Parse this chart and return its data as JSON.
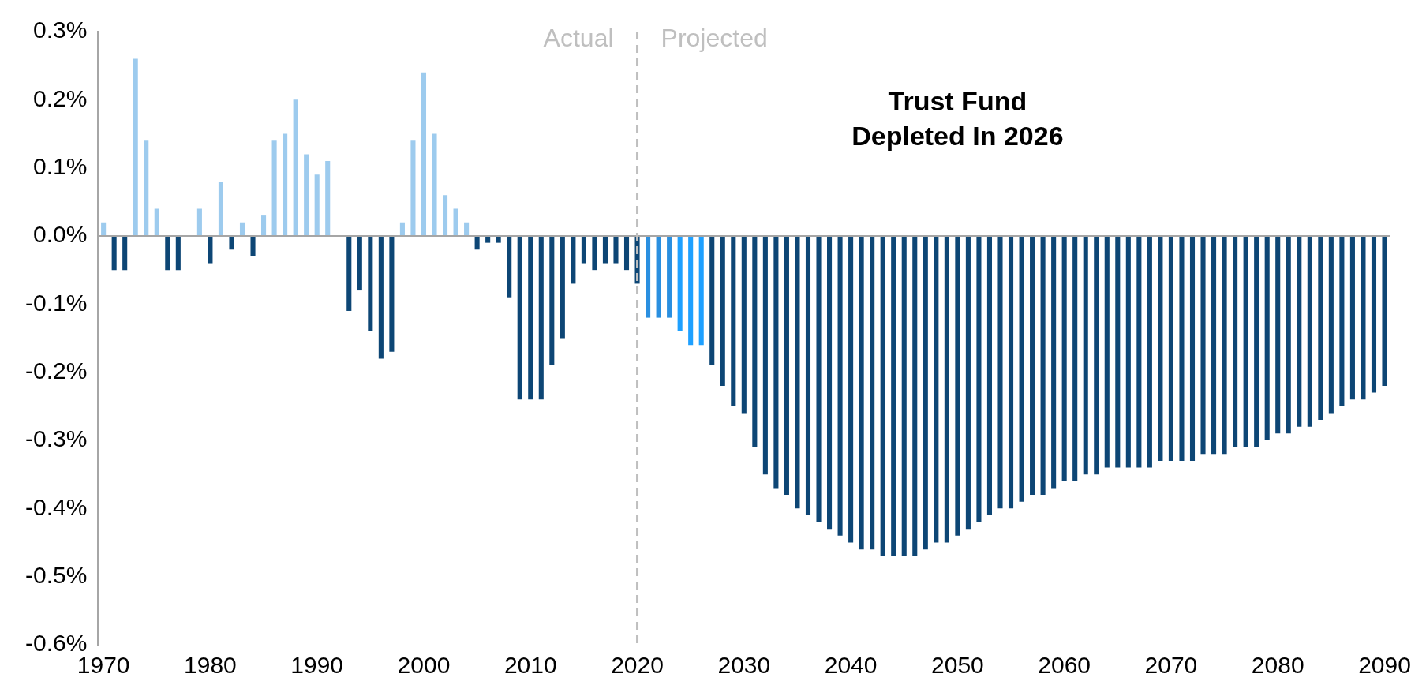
{
  "chart_data": {
    "type": "bar",
    "x": [
      1970,
      1971,
      1972,
      1973,
      1974,
      1975,
      1976,
      1977,
      1978,
      1979,
      1980,
      1981,
      1982,
      1983,
      1984,
      1985,
      1986,
      1987,
      1988,
      1989,
      1990,
      1991,
      1992,
      1993,
      1994,
      1995,
      1996,
      1997,
      1998,
      1999,
      2000,
      2001,
      2002,
      2003,
      2004,
      2005,
      2006,
      2007,
      2008,
      2009,
      2010,
      2011,
      2012,
      2013,
      2014,
      2015,
      2016,
      2017,
      2018,
      2019,
      2020,
      2021,
      2022,
      2023,
      2024,
      2025,
      2026,
      2027,
      2028,
      2029,
      2030,
      2031,
      2032,
      2033,
      2034,
      2035,
      2036,
      2037,
      2038,
      2039,
      2040,
      2041,
      2042,
      2043,
      2044,
      2045,
      2046,
      2047,
      2048,
      2049,
      2050,
      2051,
      2052,
      2053,
      2054,
      2055,
      2056,
      2057,
      2058,
      2059,
      2060,
      2061,
      2062,
      2063,
      2064,
      2065,
      2066,
      2067,
      2068,
      2069,
      2070,
      2071,
      2072,
      2073,
      2074,
      2075,
      2076,
      2077,
      2078,
      2079,
      2080,
      2081,
      2082,
      2083,
      2084,
      2085,
      2086,
      2087,
      2088,
      2089,
      2090
    ],
    "values": [
      0.02,
      -0.05,
      -0.05,
      0.26,
      0.14,
      0.04,
      -0.05,
      -0.05,
      0,
      0.04,
      -0.04,
      0.08,
      -0.02,
      0.02,
      -0.03,
      0.03,
      0.14,
      0.15,
      0.2,
      0.12,
      0.09,
      0.11,
      0,
      -0.11,
      -0.08,
      -0.14,
      -0.18,
      -0.17,
      0.02,
      0.14,
      0.24,
      0.15,
      0.06,
      0.04,
      0.02,
      -0.02,
      -0.01,
      -0.01,
      -0.09,
      -0.24,
      -0.24,
      -0.24,
      -0.19,
      -0.15,
      -0.07,
      -0.04,
      -0.05,
      -0.04,
      -0.04,
      -0.05,
      -0.07,
      -0.12,
      -0.12,
      -0.12,
      -0.14,
      -0.16,
      -0.16,
      -0.19,
      -0.22,
      -0.25,
      -0.26,
      -0.31,
      -0.35,
      -0.37,
      -0.38,
      -0.4,
      -0.41,
      -0.42,
      -0.43,
      -0.44,
      -0.45,
      -0.46,
      -0.46,
      -0.47,
      -0.47,
      -0.47,
      -0.47,
      -0.46,
      -0.45,
      -0.45,
      -0.44,
      -0.43,
      -0.42,
      -0.41,
      -0.4,
      -0.4,
      -0.39,
      -0.38,
      -0.38,
      -0.37,
      -0.36,
      -0.36,
      -0.35,
      -0.35,
      -0.34,
      -0.34,
      -0.34,
      -0.34,
      -0.34,
      -0.33,
      -0.33,
      -0.33,
      -0.33,
      -0.32,
      -0.32,
      -0.32,
      -0.31,
      -0.31,
      -0.31,
      -0.3,
      -0.29,
      -0.29,
      -0.28,
      -0.28,
      -0.27,
      -0.26,
      -0.25,
      -0.24,
      -0.24,
      -0.23,
      -0.22
    ],
    "colors": [
      "#9dcbee",
      "#0d4675",
      "#0d4675",
      "#9dcbee",
      "#9dcbee",
      "#9dcbee",
      "#0d4675",
      "#0d4675",
      "#0d4675",
      "#9dcbee",
      "#0d4675",
      "#9dcbee",
      "#0d4675",
      "#9dcbee",
      "#0d4675",
      "#9dcbee",
      "#9dcbee",
      "#9dcbee",
      "#9dcbee",
      "#9dcbee",
      "#9dcbee",
      "#9dcbee",
      "#0d4675",
      "#0d4675",
      "#0d4675",
      "#0d4675",
      "#0d4675",
      "#0d4675",
      "#9dcbee",
      "#9dcbee",
      "#9dcbee",
      "#9dcbee",
      "#9dcbee",
      "#9dcbee",
      "#9dcbee",
      "#0d4675",
      "#0d4675",
      "#0d4675",
      "#0d4675",
      "#0d4675",
      "#0d4675",
      "#0d4675",
      "#0d4675",
      "#0d4675",
      "#0d4675",
      "#0d4675",
      "#0d4675",
      "#0d4675",
      "#0d4675",
      "#0d4675",
      "#0d4675",
      "#2a8fe0",
      "#2a8fe0",
      "#2a8fe0",
      "#1ea0ff",
      "#1ea0ff",
      "#1ea0ff",
      "#0d4675",
      "#0d4675",
      "#0d4675",
      "#0d4675",
      "#0d4675",
      "#0d4675",
      "#0d4675",
      "#0d4675",
      "#0d4675",
      "#0d4675",
      "#0d4675",
      "#0d4675",
      "#0d4675",
      "#0d4675",
      "#0d4675",
      "#0d4675",
      "#0d4675",
      "#0d4675",
      "#0d4675",
      "#0d4675",
      "#0d4675",
      "#0d4675",
      "#0d4675",
      "#0d4675",
      "#0d4675",
      "#0d4675",
      "#0d4675",
      "#0d4675",
      "#0d4675",
      "#0d4675",
      "#0d4675",
      "#0d4675",
      "#0d4675",
      "#0d4675",
      "#0d4675",
      "#0d4675",
      "#0d4675",
      "#0d4675",
      "#0d4675",
      "#0d4675",
      "#0d4675",
      "#0d4675",
      "#0d4675",
      "#0d4675",
      "#0d4675",
      "#0d4675",
      "#0d4675",
      "#0d4675",
      "#0d4675",
      "#0d4675",
      "#0d4675",
      "#0d4675",
      "#0d4675",
      "#0d4675",
      "#0d4675",
      "#0d4675",
      "#0d4675",
      "#0d4675",
      "#0d4675",
      "#0d4675",
      "#0d4675",
      "#0d4675",
      "#0d4675",
      "#0d4675"
    ],
    "xlim": [
      1969.5,
      2090.5
    ],
    "xticks": [
      1970,
      1980,
      1990,
      2000,
      2010,
      2020,
      2030,
      2040,
      2050,
      2060,
      2070,
      2080,
      2090
    ],
    "ylim": [
      -0.6,
      0.3
    ],
    "yticks": [
      {
        "value": 0.3,
        "label": "0.3%"
      },
      {
        "value": 0.2,
        "label": "0.2%"
      },
      {
        "value": 0.1,
        "label": "0.1%"
      },
      {
        "value": 0,
        "label": "0.0%"
      },
      {
        "value": -0.1,
        "label": "-0.1%"
      },
      {
        "value": -0.2,
        "label": "-0.2%"
      },
      {
        "value": -0.3,
        "label": "-0.3%"
      },
      {
        "value": -0.4,
        "label": "-0.4%"
      },
      {
        "value": -0.5,
        "label": "-0.5%"
      },
      {
        "value": -0.6,
        "label": "-0.6%"
      }
    ],
    "ref_lines": [
      {
        "axis": "x",
        "value": 2020,
        "color": "#bfbfbf",
        "line_style": "dashed"
      }
    ],
    "annotations": [
      "Actual",
      "Projected",
      "Trust Fund\nDepleted In 2026"
    ]
  }
}
